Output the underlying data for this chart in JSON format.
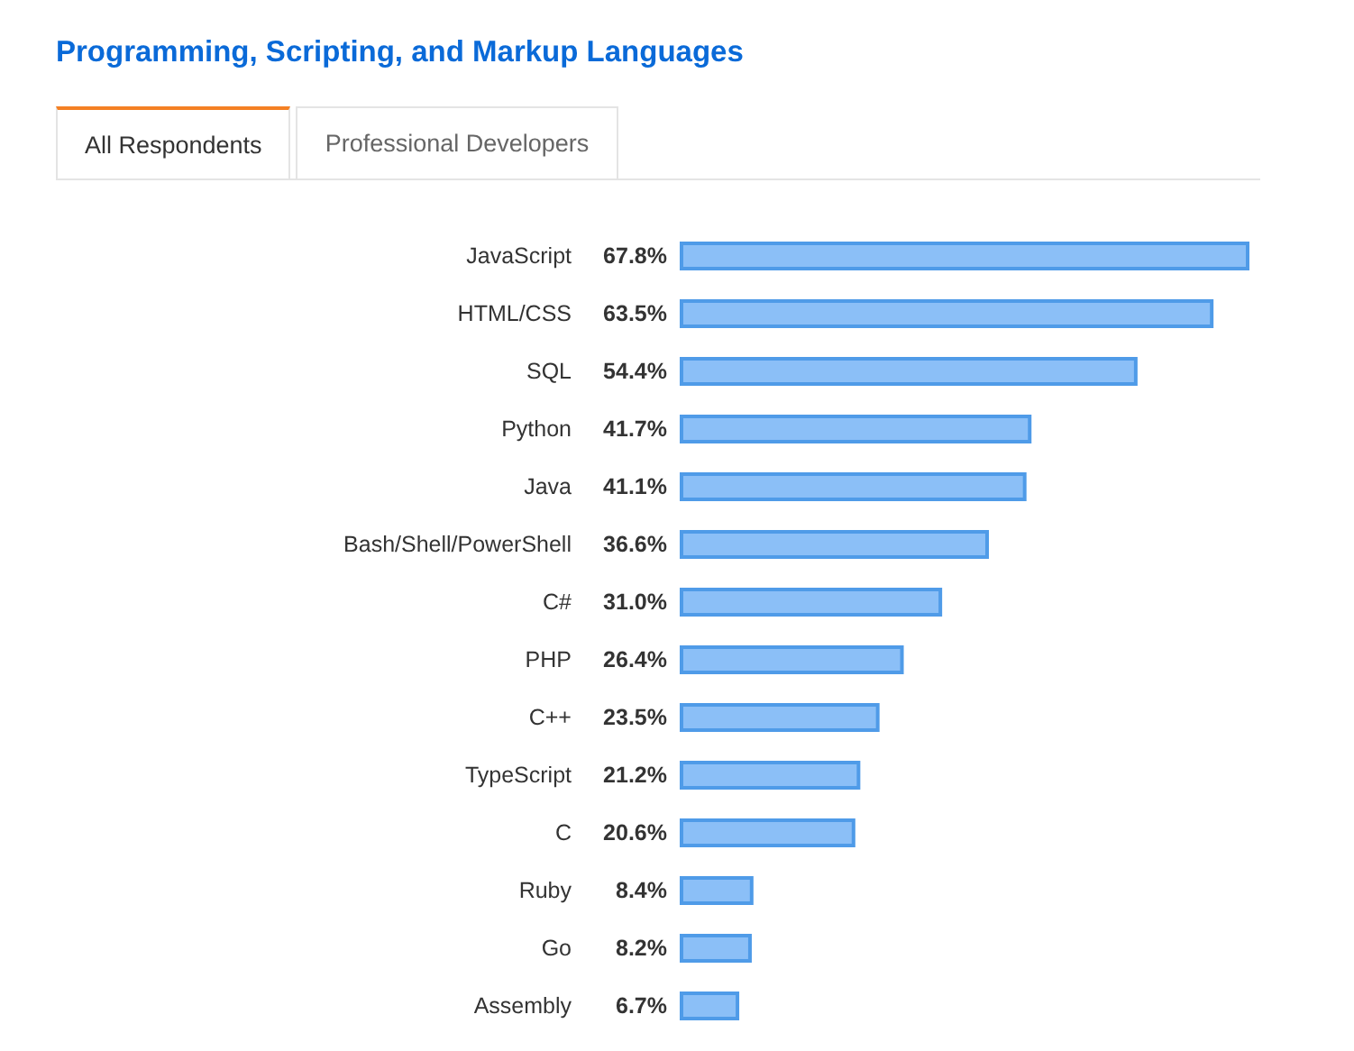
{
  "chart_data": {
    "type": "bar",
    "orientation": "horizontal",
    "title": "Programming, Scripting, and Markup Languages",
    "annotations": [
      "All Respondents",
      "Professional Developers"
    ],
    "categories": [
      "JavaScript",
      "HTML/CSS",
      "SQL",
      "Python",
      "Java",
      "Bash/Shell/PowerShell",
      "C#",
      "PHP",
      "C++",
      "TypeScript",
      "C",
      "Ruby",
      "Go",
      "Assembly"
    ],
    "values": [
      67.8,
      63.5,
      54.4,
      41.7,
      41.1,
      36.6,
      31.0,
      26.4,
      23.5,
      21.2,
      20.6,
      8.4,
      8.2,
      6.7
    ],
    "value_labels": [
      "67.8%",
      "63.5%",
      "54.4%",
      "41.7%",
      "41.1%",
      "36.6%",
      "31.0%",
      "26.4%",
      "23.5%",
      "21.2%",
      "20.6%",
      "8.4%",
      "8.2%",
      "6.7%"
    ],
    "color": "#8bbff7"
  }
}
